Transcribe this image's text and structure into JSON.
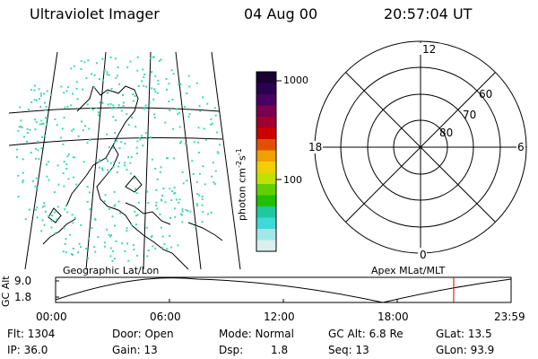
{
  "header": {
    "instrument": "Ultraviolet Imager",
    "date": "04 Aug 00",
    "time": "20:57:04 UT"
  },
  "colorbar": {
    "unit_label": "photon cm",
    "unit_exp1": "-2",
    "unit_s": "s",
    "unit_exp2": "-1",
    "tick_1000": "1000",
    "tick_100": "100",
    "colors": [
      "#1a0033",
      "#2a0050",
      "#4a0060",
      "#7a0050",
      "#a00030",
      "#cc0000",
      "#e05000",
      "#f0a000",
      "#f0d000",
      "#c0e000",
      "#60d000",
      "#20c000",
      "#20c8a0",
      "#40d8d8",
      "#a0e8e8",
      "#d8f0f0"
    ]
  },
  "polar": {
    "mlt_12": "12",
    "mlt_18": "18",
    "mlt_6": "6",
    "mlt_0": "0",
    "lat_60": "60",
    "lat_70": "70",
    "lat_80": "80"
  },
  "map": {
    "pixel_color": "#40d8b0"
  },
  "timeline": {
    "left_label": "Geographic Lat/Lon",
    "right_label": "Apex MLat/MLT",
    "axis_title": "GC Alt",
    "y_max": "9.0",
    "y_min": "1.8",
    "ticks": [
      "00:00",
      "06:00",
      "12:00",
      "18:00",
      "23:59"
    ],
    "marker_color": "#cc0000"
  },
  "stats": {
    "flt": "Flt: 1304",
    "ip": "IP: 36.0",
    "door": "Door: Open",
    "gain": "Gain: 13",
    "mode": "Mode: Normal",
    "dsp_label": "Dsp:",
    "dsp_value": "1.8",
    "gc_alt": "GC Alt: 6.8 Re",
    "seq": "Seq: 13",
    "glat": "GLat: 13.5",
    "glon": "GLon: 93.9"
  }
}
